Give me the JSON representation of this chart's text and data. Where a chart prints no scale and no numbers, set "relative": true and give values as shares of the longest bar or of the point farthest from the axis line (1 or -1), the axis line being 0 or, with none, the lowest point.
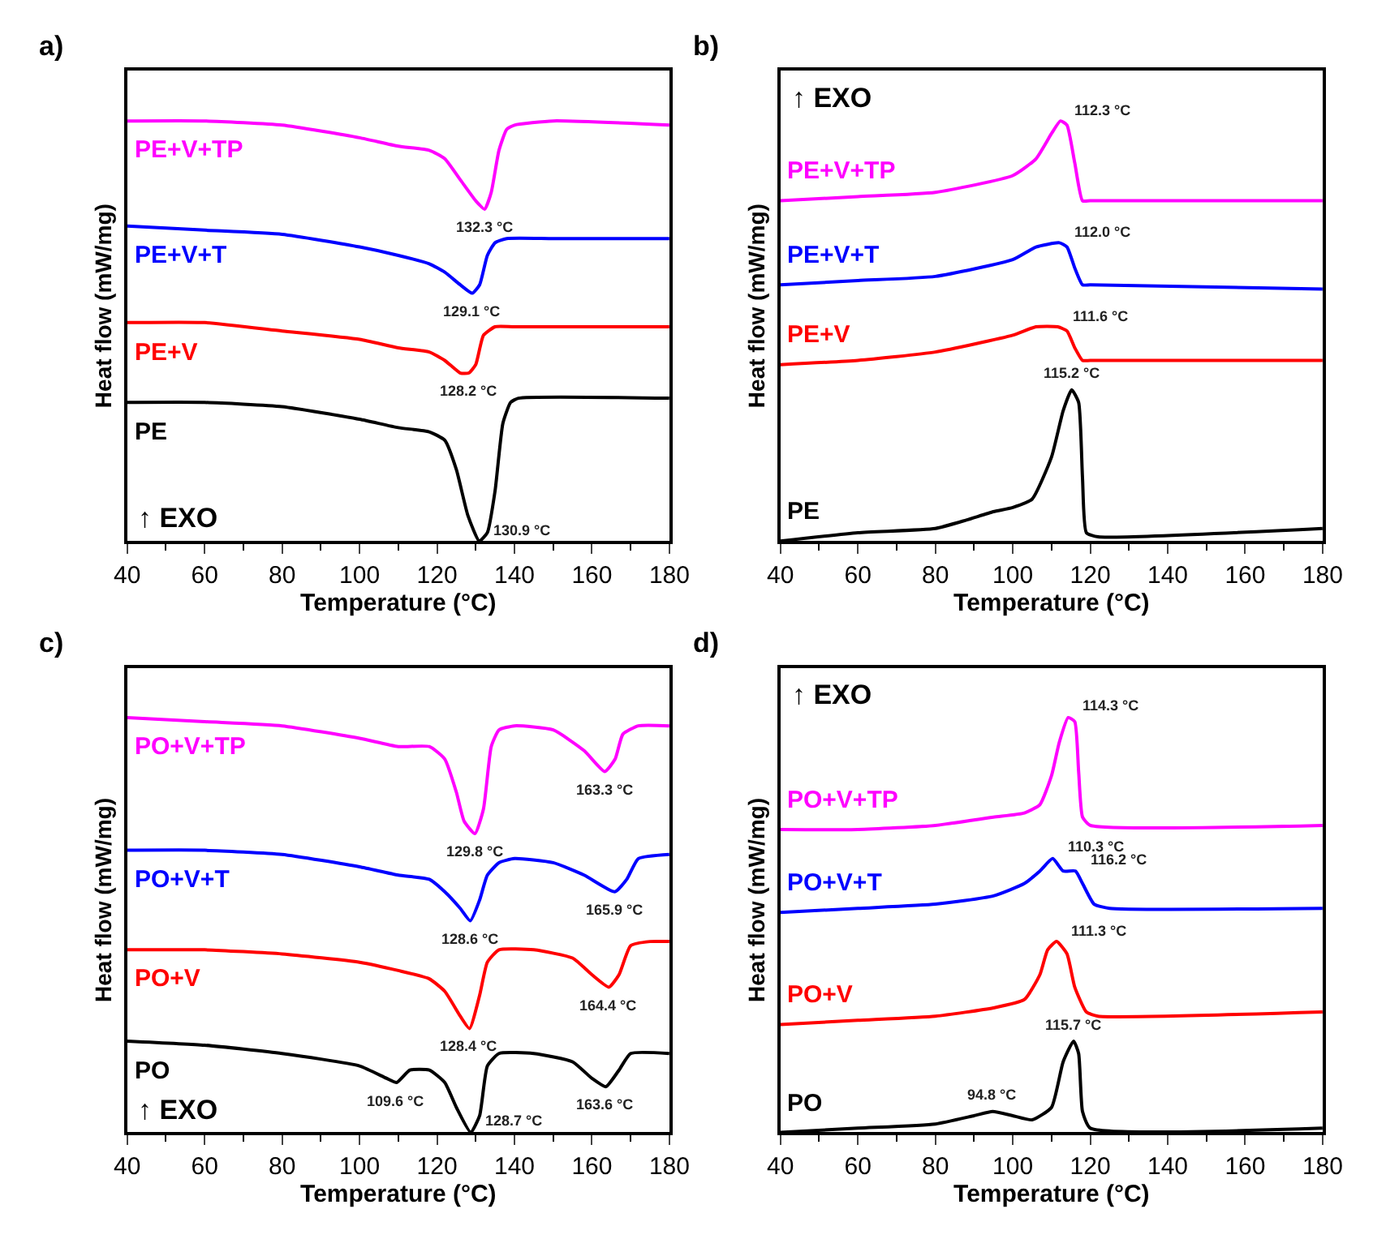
{
  "chart_data": [
    {
      "type": "line",
      "title": "a)",
      "xlabel": "Temperature (°C)",
      "ylabel": "Heat flow (mW/mg)",
      "relative": true,
      "xlim": [
        40,
        180
      ],
      "xticks": [
        40,
        {
          "value": 50,
          "label": null
        },
        60,
        {
          "value": 70,
          "label": null
        },
        80,
        {
          "value": 90,
          "label": null
        },
        100,
        {
          "value": 110,
          "label": null
        },
        120,
        {
          "value": 130,
          "label": null
        },
        140,
        {
          "value": 150,
          "label": null
        },
        160,
        {
          "value": 170,
          "label": null
        },
        180
      ],
      "marker": "none",
      "line_style": "solid",
      "series": [
        {
          "name": "PE",
          "color": "#000000",
          "x": [
            40,
            60,
            80,
            100,
            110,
            118,
            122,
            125,
            128,
            130.9,
            133,
            135,
            137,
            139,
            141,
            180
          ],
          "values": [
            0.33,
            0.33,
            0.32,
            0.29,
            0.27,
            0.26,
            0.24,
            0.17,
            0.06,
            0,
            0.02,
            0.12,
            0.28,
            0.33,
            0.34,
            0.34
          ]
        },
        {
          "name": "PE+V",
          "color": "#ff0000",
          "x": [
            40,
            60,
            80,
            100,
            110,
            118,
            122,
            126,
            128.2,
            130,
            132,
            135,
            140,
            180
          ],
          "values": [
            0.52,
            0.52,
            0.5,
            0.48,
            0.46,
            0.45,
            0.43,
            0.4,
            0.4,
            0.42,
            0.49,
            0.51,
            0.51,
            0.51
          ]
        },
        {
          "name": "PE+V+T",
          "color": "#0000ff",
          "x": [
            40,
            60,
            80,
            100,
            110,
            118,
            122,
            126,
            129.1,
            131,
            133,
            135,
            138,
            150,
            180
          ],
          "values": [
            0.75,
            0.74,
            0.73,
            0.7,
            0.68,
            0.66,
            0.64,
            0.61,
            0.59,
            0.61,
            0.68,
            0.71,
            0.72,
            0.72,
            0.72
          ]
        },
        {
          "name": "PE+V+TP",
          "color": "#ff00ff",
          "x": [
            40,
            60,
            80,
            100,
            110,
            118,
            122,
            126,
            130,
            132.3,
            134,
            136,
            138,
            140,
            150,
            180
          ],
          "values": [
            1.0,
            1.0,
            0.99,
            0.96,
            0.94,
            0.93,
            0.91,
            0.86,
            0.81,
            0.79,
            0.83,
            0.93,
            0.98,
            0.99,
            1.0,
            0.99
          ]
        }
      ],
      "annotations": [
        "↑ EXO",
        {
          "text": "130.9 °C",
          "x": 130.9,
          "y": 0
        },
        {
          "text": "128.2 °C",
          "x": 128.2,
          "y": 0.4
        },
        {
          "text": "129.1 °C",
          "x": 129.1,
          "y": 0.59
        },
        {
          "text": "132.3 °C",
          "x": 132.3,
          "y": 0.79
        }
      ]
    },
    {
      "type": "line",
      "title": "b)",
      "xlabel": "Temperature (°C)",
      "ylabel": "Heat flow (mW/mg)",
      "relative": true,
      "xlim": [
        40,
        180
      ],
      "xticks": [
        40,
        {
          "value": 50,
          "label": null
        },
        60,
        {
          "value": 70,
          "label": null
        },
        80,
        {
          "value": 90,
          "label": null
        },
        100,
        {
          "value": 110,
          "label": null
        },
        120,
        {
          "value": 130,
          "label": null
        },
        140,
        {
          "value": 150,
          "label": null
        },
        160,
        {
          "value": 170,
          "label": null
        },
        180
      ],
      "marker": "none",
      "line_style": "solid",
      "series": [
        {
          "name": "PE",
          "color": "#000000",
          "x": [
            40,
            60,
            80,
            88,
            95,
            100,
            105,
            110,
            113,
            115.2,
            117,
            118,
            119,
            122,
            180
          ],
          "values": [
            0,
            0.02,
            0.03,
            0.05,
            0.07,
            0.08,
            0.1,
            0.2,
            0.31,
            0.36,
            0.33,
            0.15,
            0.02,
            0.01,
            0.03
          ]
        },
        {
          "name": "PE+V",
          "color": "#ff0000",
          "x": [
            40,
            60,
            80,
            100,
            106,
            111.6,
            114,
            116,
            118,
            120,
            180
          ],
          "values": [
            0.42,
            0.43,
            0.45,
            0.49,
            0.51,
            0.51,
            0.5,
            0.46,
            0.43,
            0.43,
            0.43
          ]
        },
        {
          "name": "PE+V+T",
          "color": "#0000ff",
          "x": [
            40,
            60,
            80,
            100,
            106,
            112,
            114,
            116,
            118,
            120,
            180
          ],
          "values": [
            0.61,
            0.62,
            0.63,
            0.67,
            0.7,
            0.71,
            0.7,
            0.65,
            0.61,
            0.61,
            0.6
          ]
        },
        {
          "name": "PE+V+TP",
          "color": "#ff00ff",
          "x": [
            40,
            60,
            80,
            100,
            106,
            110,
            112.3,
            114,
            116,
            118,
            120,
            180
          ],
          "values": [
            0.81,
            0.82,
            0.83,
            0.87,
            0.91,
            0.97,
            1.0,
            0.99,
            0.9,
            0.81,
            0.81,
            0.81
          ]
        }
      ],
      "annotations": [
        "↑ EXO",
        {
          "text": "115.2 °C",
          "x": 115.2,
          "y": 0.36
        },
        {
          "text": "111.6 °C",
          "x": 111.6,
          "y": 0.51
        },
        {
          "text": "112.0 °C",
          "x": 112.0,
          "y": 0.71
        },
        {
          "text": "112.3 °C",
          "x": 112.3,
          "y": 1.0
        }
      ]
    },
    {
      "type": "line",
      "title": "c)",
      "xlabel": "Temperature (°C)",
      "ylabel": "Heat flow (mW/mg)",
      "relative": true,
      "xlim": [
        40,
        180
      ],
      "xticks": [
        40,
        {
          "value": 50,
          "label": null
        },
        60,
        {
          "value": 70,
          "label": null
        },
        80,
        {
          "value": 90,
          "label": null
        },
        100,
        {
          "value": 110,
          "label": null
        },
        120,
        {
          "value": 130,
          "label": null
        },
        140,
        {
          "value": 150,
          "label": null
        },
        160,
        {
          "value": 170,
          "label": null
        },
        180
      ],
      "marker": "none",
      "line_style": "solid",
      "series": [
        {
          "name": "PO",
          "color": "#000000",
          "x": [
            40,
            60,
            80,
            100,
            107,
            109.6,
            113,
            118,
            122,
            125,
            128.7,
            131,
            133,
            136,
            145,
            155,
            160,
            163.6,
            167,
            170,
            180
          ],
          "values": [
            0.22,
            0.21,
            0.19,
            0.16,
            0.13,
            0.12,
            0.15,
            0.15,
            0.12,
            0.06,
            0,
            0.04,
            0.16,
            0.19,
            0.19,
            0.17,
            0.13,
            0.11,
            0.15,
            0.19,
            0.19
          ]
        },
        {
          "name": "PO+V",
          "color": "#ff0000",
          "x": [
            40,
            60,
            80,
            100,
            110,
            118,
            122,
            126,
            128.4,
            131,
            133,
            136,
            145,
            155,
            160,
            164.4,
            167,
            170,
            175,
            180
          ],
          "values": [
            0.44,
            0.44,
            0.43,
            0.41,
            0.39,
            0.37,
            0.34,
            0.28,
            0.25,
            0.33,
            0.41,
            0.44,
            0.44,
            0.42,
            0.38,
            0.35,
            0.38,
            0.45,
            0.46,
            0.46
          ]
        },
        {
          "name": "PO+V+T",
          "color": "#0000ff",
          "x": [
            40,
            60,
            80,
            100,
            110,
            118,
            122,
            126,
            128.6,
            131,
            133,
            136,
            140,
            150,
            158,
            165.9,
            169,
            172,
            180
          ],
          "values": [
            0.68,
            0.68,
            0.67,
            0.64,
            0.62,
            0.61,
            0.58,
            0.54,
            0.51,
            0.56,
            0.62,
            0.65,
            0.66,
            0.65,
            0.62,
            0.58,
            0.61,
            0.66,
            0.67
          ]
        },
        {
          "name": "PO+V+TP",
          "color": "#ff00ff",
          "x": [
            40,
            60,
            80,
            100,
            110,
            118,
            122,
            125,
            127,
            129.8,
            132,
            134,
            136,
            140,
            150,
            158,
            163.3,
            166,
            168,
            172,
            180
          ],
          "values": [
            1.0,
            0.99,
            0.98,
            0.95,
            0.93,
            0.93,
            0.9,
            0.82,
            0.75,
            0.72,
            0.78,
            0.93,
            0.97,
            0.98,
            0.97,
            0.92,
            0.87,
            0.9,
            0.96,
            0.98,
            0.98
          ]
        }
      ],
      "annotations": [
        "↑ EXO",
        {
          "text": "109.6 °C",
          "x": 109.6,
          "y": 0.12
        },
        {
          "text": "128.7 °C",
          "x": 128.7,
          "y": 0
        },
        {
          "text": "163.6 °C",
          "x": 163.6,
          "y": 0.11
        },
        {
          "text": "128.4 °C",
          "x": 128.4,
          "y": 0.25
        },
        {
          "text": "164.4 °C",
          "x": 164.4,
          "y": 0.35
        },
        {
          "text": "128.6 °C",
          "x": 128.6,
          "y": 0.51
        },
        {
          "text": "165.9 °C",
          "x": 165.9,
          "y": 0.58
        },
        {
          "text": "129.8 °C",
          "x": 129.8,
          "y": 0.72
        },
        {
          "text": "163.3 °C",
          "x": 163.3,
          "y": 0.87
        }
      ]
    },
    {
      "type": "line",
      "title": "d)",
      "xlabel": "Temperature (°C)",
      "ylabel": "Heat flow (mW/mg)",
      "relative": true,
      "xlim": [
        40,
        180
      ],
      "xticks": [
        40,
        {
          "value": 50,
          "label": null
        },
        60,
        {
          "value": 70,
          "label": null
        },
        80,
        {
          "value": 90,
          "label": null
        },
        100,
        {
          "value": 110,
          "label": null
        },
        120,
        {
          "value": 130,
          "label": null
        },
        140,
        {
          "value": 150,
          "label": null
        },
        160,
        {
          "value": 170,
          "label": null
        },
        180
      ],
      "marker": "none",
      "line_style": "solid",
      "series": [
        {
          "name": "PO",
          "color": "#000000",
          "x": [
            40,
            60,
            80,
            90,
            94.8,
            100,
            105,
            110,
            113,
            115.7,
            117,
            118,
            120,
            180
          ],
          "values": [
            0,
            0.01,
            0.02,
            0.04,
            0.05,
            0.04,
            0.03,
            0.06,
            0.17,
            0.22,
            0.19,
            0.05,
            0.01,
            0.01
          ]
        },
        {
          "name": "PO+V",
          "color": "#ff0000",
          "x": [
            40,
            60,
            80,
            95,
            103,
            107,
            109,
            111.3,
            114,
            116,
            119,
            122,
            180
          ],
          "values": [
            0.26,
            0.27,
            0.28,
            0.3,
            0.32,
            0.38,
            0.44,
            0.46,
            0.43,
            0.35,
            0.29,
            0.28,
            0.29
          ]
        },
        {
          "name": "PO+V+T",
          "color": "#0000ff",
          "x": [
            40,
            60,
            80,
            95,
            103,
            107,
            110.3,
            113,
            116.2,
            118,
            121,
            125,
            180
          ],
          "values": [
            0.53,
            0.54,
            0.55,
            0.57,
            0.6,
            0.63,
            0.66,
            0.63,
            0.63,
            0.6,
            0.55,
            0.54,
            0.54
          ]
        },
        {
          "name": "PO+V+TP",
          "color": "#ff00ff",
          "x": [
            40,
            60,
            80,
            95,
            103,
            107,
            110,
            112,
            114.3,
            116,
            117,
            118,
            120,
            180
          ],
          "values": [
            0.73,
            0.73,
            0.74,
            0.76,
            0.77,
            0.79,
            0.86,
            0.94,
            1.0,
            0.99,
            0.87,
            0.76,
            0.74,
            0.74
          ]
        }
      ],
      "annotations": [
        "↑ EXO",
        {
          "text": "94.8 °C",
          "x": 94.8,
          "y": 0.05
        },
        {
          "text": "115.7 °C",
          "x": 115.7,
          "y": 0.22
        },
        {
          "text": "111.3 °C",
          "x": 111.3,
          "y": 0.46
        },
        {
          "text": "110.3 °C",
          "x": 110.3,
          "y": 0.66
        },
        {
          "text": "116.2 °C",
          "x": 116.2,
          "y": 0.63
        },
        {
          "text": "114.3 °C",
          "x": 114.3,
          "y": 1.0
        }
      ]
    }
  ]
}
